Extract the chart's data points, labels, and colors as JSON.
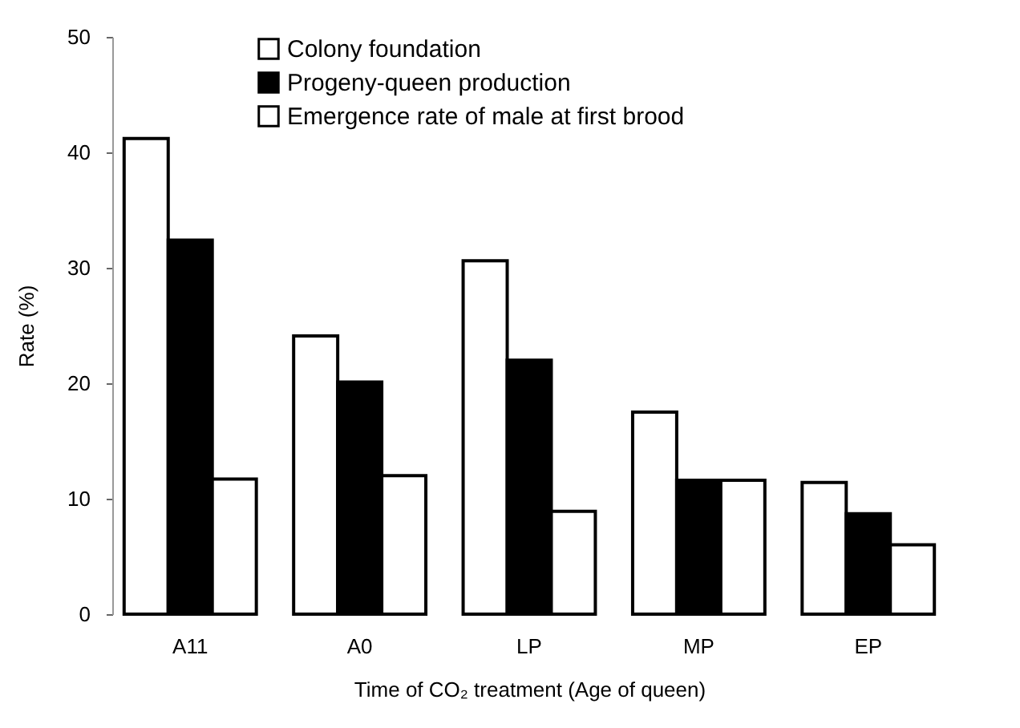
{
  "chart_data": {
    "type": "bar",
    "xlabel": "Time of CO₂ treatment  (Age of queen)",
    "ylabel": "Rate (%)",
    "categories": [
      "A11",
      "A0",
      "LP",
      "MP",
      "EP"
    ],
    "series": [
      {
        "name": "Colony foundation",
        "color": "#ffffff",
        "values": [
          41.2,
          24.1,
          30.6,
          17.5,
          11.4
        ]
      },
      {
        "name": "Progeny-queen production",
        "color": "#000000",
        "values": [
          32.4,
          20.1,
          22.0,
          11.6,
          8.7
        ]
      },
      {
        "name": "Emergence rate of male at first brood",
        "color": "#ffffff",
        "values": [
          11.7,
          12.0,
          8.9,
          11.6,
          6.0
        ]
      }
    ],
    "ylim": [
      0,
      50
    ],
    "yticks": [
      0,
      10,
      20,
      30,
      40,
      50
    ],
    "grid": false,
    "legend": "top"
  }
}
